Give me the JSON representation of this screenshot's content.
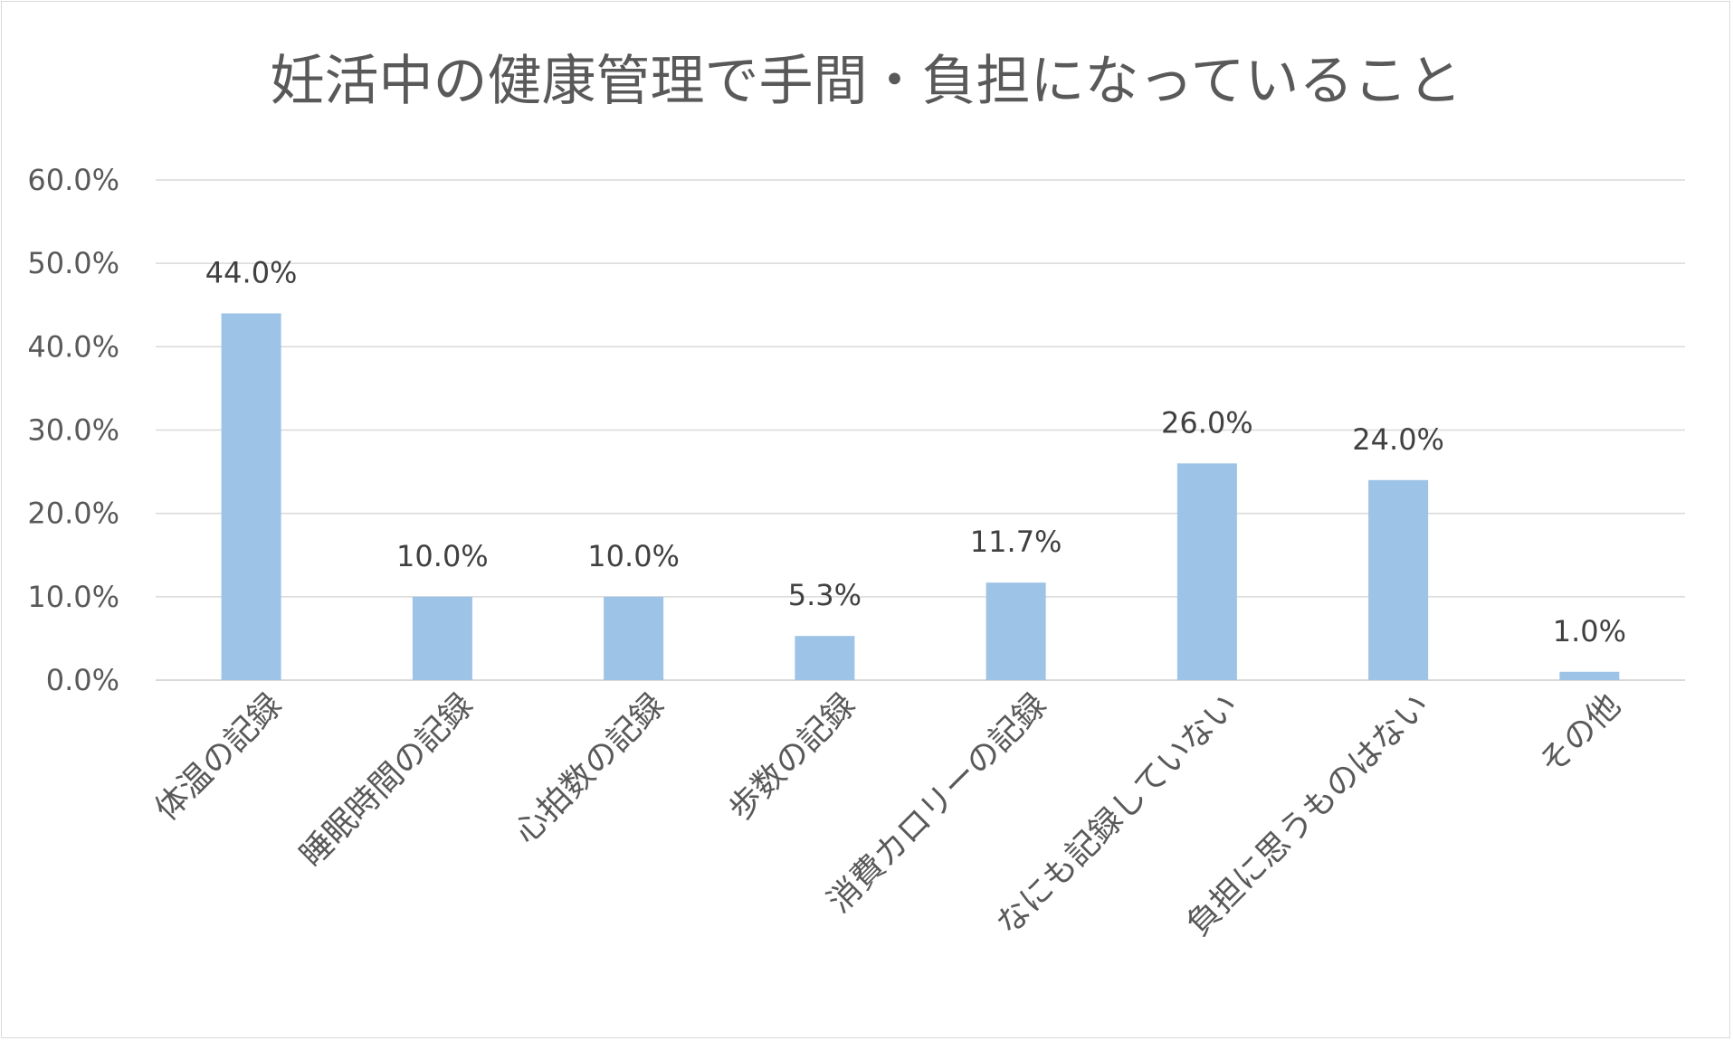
{
  "chart_data": {
    "type": "bar",
    "title": "妊活中の健康管理で手間・負担になっていること",
    "categories": [
      "体温の記録",
      "睡眠時間の記録",
      "心拍数の記録",
      "歩数の記録",
      "消費カロリーの記録",
      "なにも記録していない",
      "負担に思うものはない",
      "その他"
    ],
    "values": [
      44.0,
      10.0,
      10.0,
      5.3,
      11.7,
      26.0,
      24.0,
      1.0
    ],
    "data_labels": [
      "44.0%",
      "10.0%",
      "10.0%",
      "5.3%",
      "11.7%",
      "26.0%",
      "24.0%",
      "1.0%"
    ],
    "ylim": [
      0,
      60
    ],
    "yticks": [
      "0.0%",
      "10.0%",
      "20.0%",
      "30.0%",
      "40.0%",
      "50.0%",
      "60.0%"
    ],
    "xlabel": "",
    "ylabel": "",
    "grid": true,
    "legend": "none",
    "bar_color": "#9dc3e6",
    "grid_color": "#d9d9d9"
  }
}
